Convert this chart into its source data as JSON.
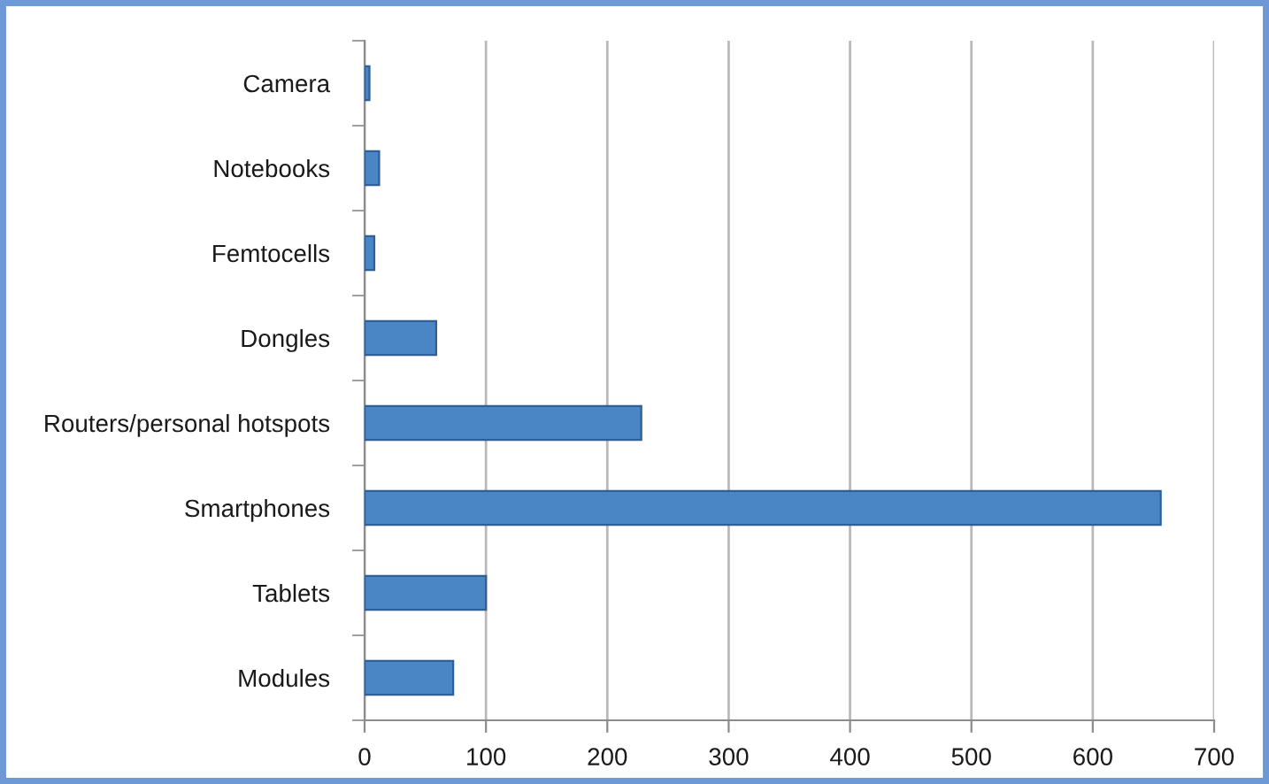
{
  "chart_data": {
    "type": "bar",
    "orientation": "horizontal",
    "categories": [
      "Camera",
      "Notebooks",
      "Femtocells",
      "Dongles",
      "Routers/personal hotspots",
      "Smartphones",
      "Tablets",
      "Modules"
    ],
    "values": [
      4,
      12,
      8,
      59,
      228,
      656,
      100,
      73
    ],
    "color": "#4a86c6",
    "xlim": [
      0,
      700
    ],
    "xticks": [
      0,
      100,
      200,
      300,
      400,
      500,
      600,
      700
    ],
    "grid": "x"
  }
}
